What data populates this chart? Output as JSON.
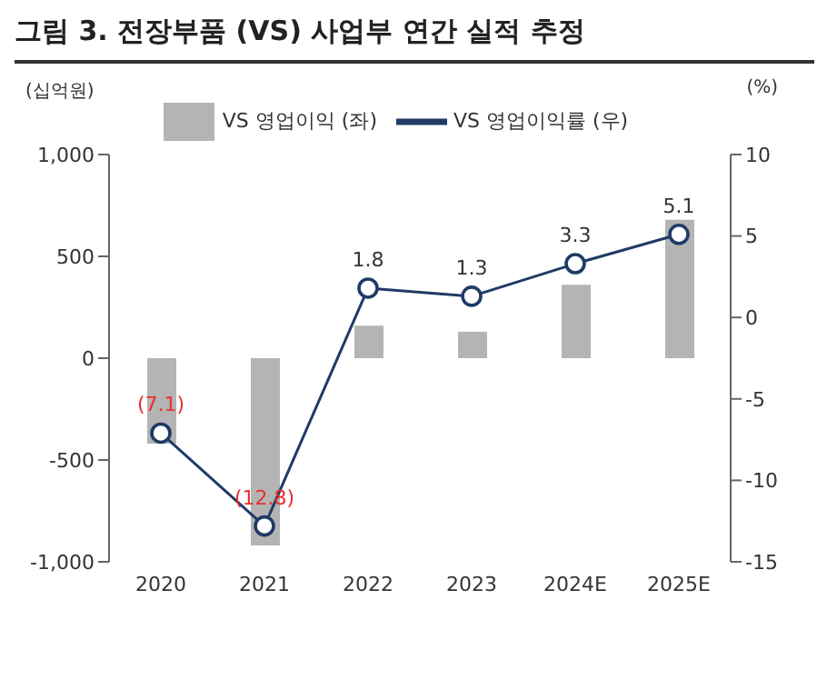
{
  "chart_data": {
    "type": "bar",
    "title": "그림 3. 전장부품 (VS) 사업부 연간 실적 추정",
    "ylabel": "(십억원)",
    "y2label": "(%)",
    "categories": [
      "2020",
      "2021",
      "2022",
      "2023",
      "2024E",
      "2025E"
    ],
    "series": [
      {
        "name": "VS 영업이익 (좌)",
        "color": "#b4b4b4",
        "values": [
          -420,
          -920,
          160,
          130,
          360,
          680
        ]
      },
      {
        "name": "VS 영업이익률 (우)",
        "type": "line",
        "axis": "y2",
        "color": "#1f3b66",
        "marker": "circle",
        "values": [
          -7.1,
          -12.8,
          1.8,
          1.3,
          3.3,
          5.1
        ],
        "value_labels": [
          "(7.1)",
          "(12.8)",
          "1.8",
          "1.3",
          "3.3",
          "5.1"
        ]
      }
    ],
    "ylim": [
      -1000,
      1000
    ],
    "yticks": [
      {
        "value": -1000,
        "label": "-1,000"
      },
      -500,
      0,
      500,
      {
        "value": 1000,
        "label": "1,000"
      }
    ],
    "y2lim": [
      -15,
      10
    ],
    "y2ticks": [
      -15,
      -10,
      -5,
      0,
      5,
      10
    ],
    "grid": false,
    "legend": "top"
  }
}
